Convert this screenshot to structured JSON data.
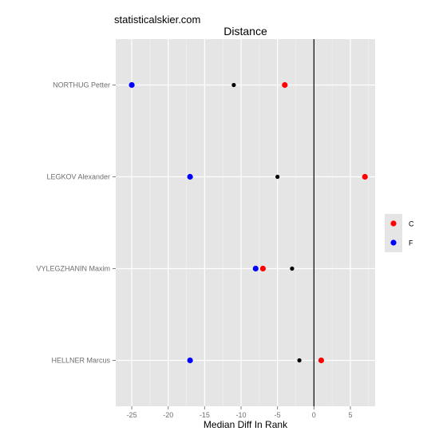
{
  "watermark": "statisticalskier.com",
  "chart_data": {
    "type": "scatter",
    "title": "Distance",
    "xlabel": "Median Diff In Rank",
    "ylabel": "",
    "xlim": [
      -27.2,
      8.4
    ],
    "xticks": [
      -25,
      -20,
      -15,
      -10,
      -5,
      0,
      5
    ],
    "categories": [
      "NORTHUG Petter",
      "LEGKOV Alexander",
      "VYLEGZHANIN Maxim",
      "HELLNER Marcus"
    ],
    "reference_line_x": 0,
    "grid": true,
    "legend_position": "right",
    "legend": [
      {
        "label": "C",
        "color": "#ff0000"
      },
      {
        "label": "F",
        "color": "#0000ff"
      }
    ],
    "series": [
      {
        "name": "C",
        "color": "#ff0000",
        "values": [
          -4,
          7,
          -7,
          1
        ]
      },
      {
        "name": "F",
        "color": "#0000ff",
        "values": [
          -25,
          -17,
          -8,
          -17
        ]
      },
      {
        "color": "#000000",
        "values": [
          -11,
          -5,
          -3,
          -2
        ]
      }
    ]
  }
}
